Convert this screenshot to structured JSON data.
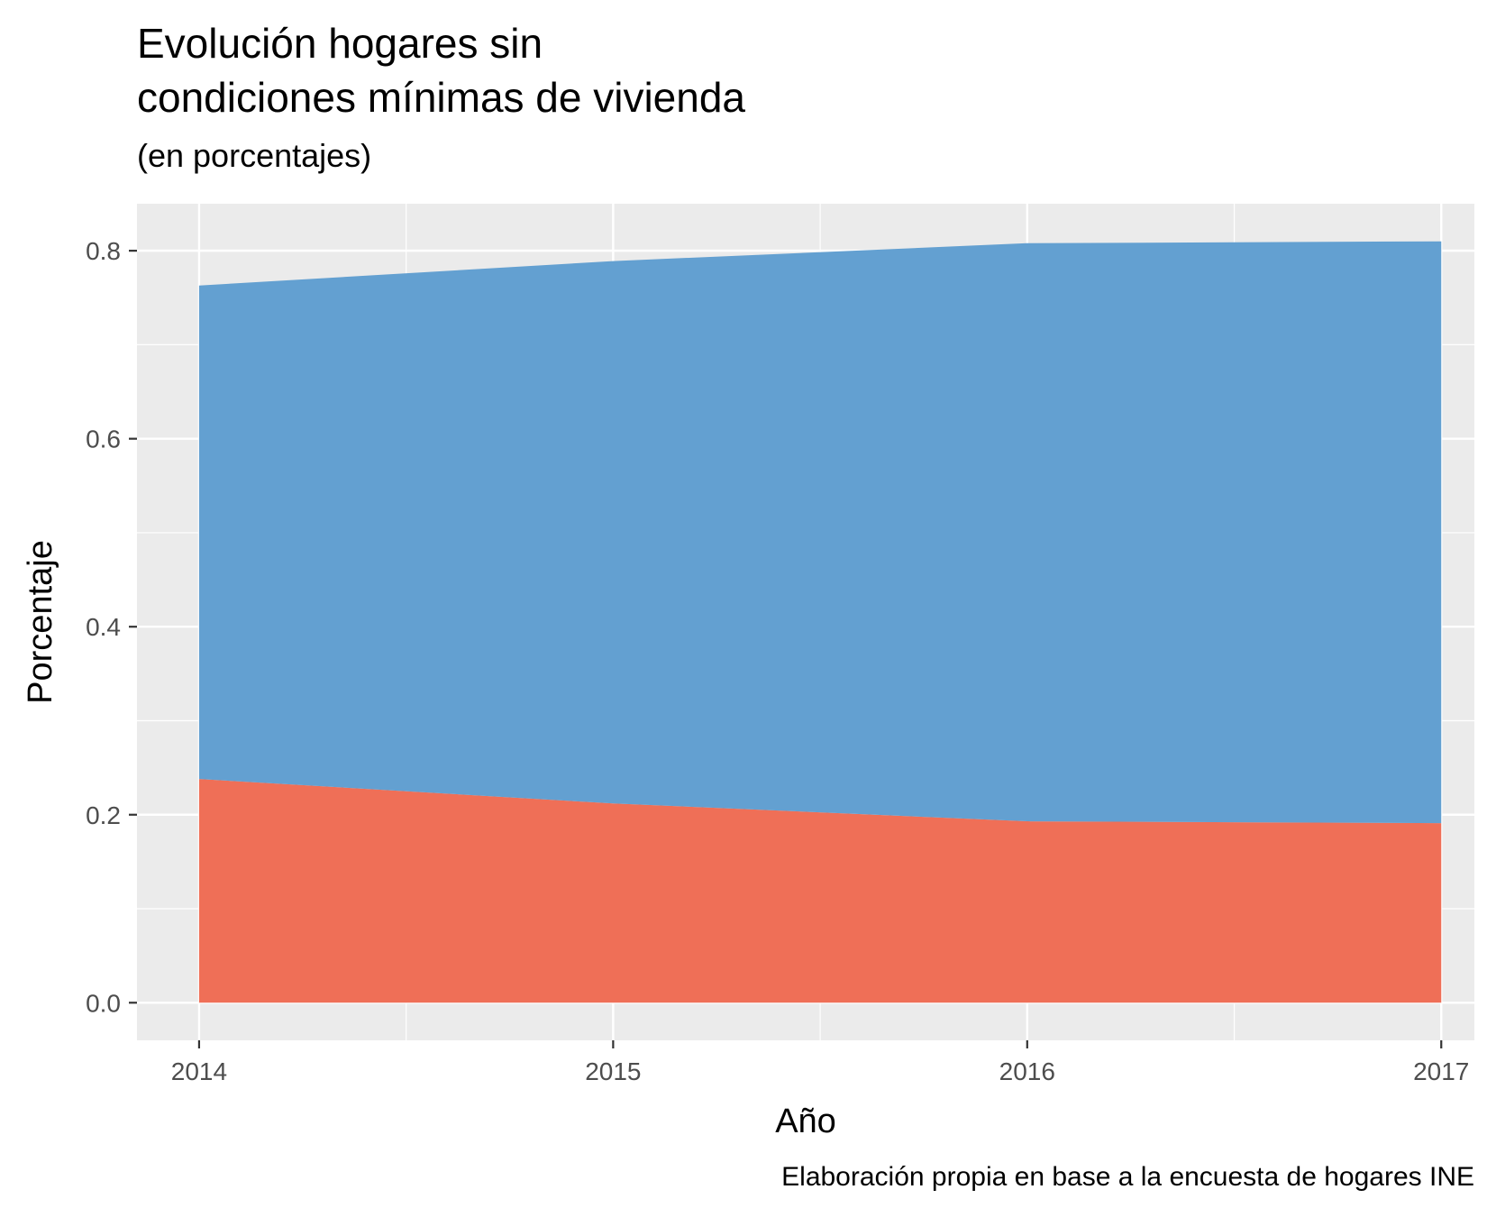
{
  "header": {
    "title": "Evolución hogares sin\ncondiciones mínimas de vivienda",
    "subtitle": "(en porcentajes)",
    "caption": "Elaboración propia en base a la encuesta de hogares INE"
  },
  "colors": {
    "panel_bg": "#ebebeb",
    "grid": "#ffffff",
    "series_red": "#ee6a52",
    "series_blue": "#5e9dcf"
  },
  "chart_data": {
    "type": "area",
    "stacked": true,
    "x": [
      2014,
      2015,
      2016,
      2017
    ],
    "x_tick_labels": [
      "2014",
      "2015",
      "2016",
      "2017"
    ],
    "y_tick_labels": [
      "0.0",
      "0.2",
      "0.4",
      "0.6",
      "0.8"
    ],
    "y_ticks": [
      0.0,
      0.2,
      0.4,
      0.6,
      0.8
    ],
    "xlim": [
      2013.85,
      2017.08
    ],
    "ylim": [
      -0.04,
      0.85
    ],
    "xlabel": "Año",
    "ylabel": "Porcentaje",
    "grid": true,
    "legend": "none",
    "series": [
      {
        "values": [
          0.238,
          0.212,
          0.193,
          0.191
        ],
        "color": "#ee6a52"
      },
      {
        "values": [
          0.525,
          0.577,
          0.615,
          0.619
        ],
        "color": "#5e9dcf"
      }
    ]
  }
}
